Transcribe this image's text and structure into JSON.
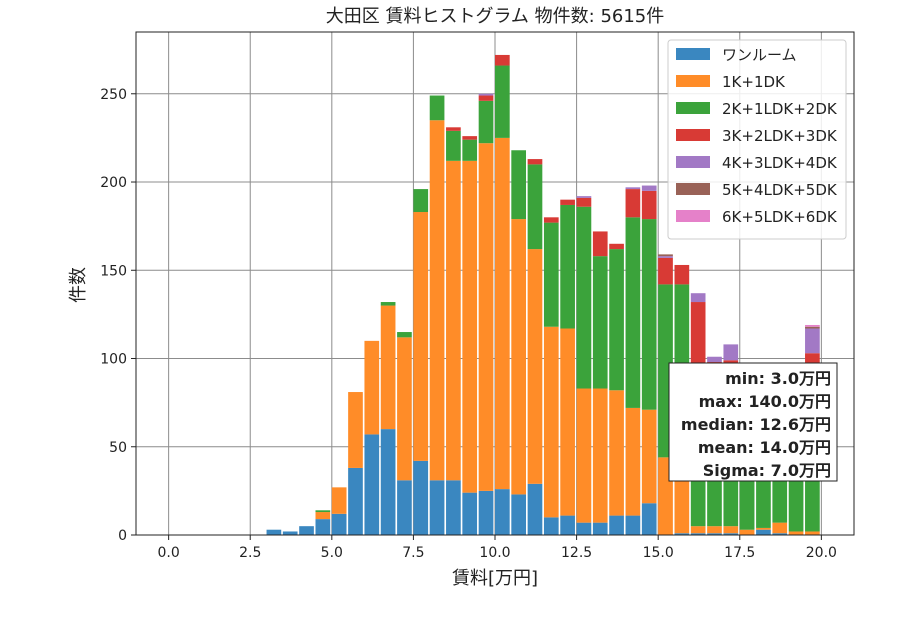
{
  "chart_data": {
    "type": "bar",
    "stacked": true,
    "title": "大田区 賃料ヒストグラム  物件数: 5615件",
    "xlabel": "賃料[万円]",
    "ylabel": "件数",
    "xlim": [
      -1.0,
      21.0
    ],
    "ylim": [
      0,
      285
    ],
    "grid": true,
    "legend_position": "top-right",
    "xticks": [
      0.0,
      2.5,
      5.0,
      7.5,
      10.0,
      12.5,
      15.0,
      17.5,
      20.0
    ],
    "xtick_labels": [
      "0.0",
      "2.5",
      "5.0",
      "7.5",
      "10.0",
      "12.5",
      "15.0",
      "17.5",
      "20.0"
    ],
    "yticks": [
      0,
      50,
      100,
      150,
      200,
      250
    ],
    "ytick_labels": [
      "0",
      "50",
      "100",
      "150",
      "200",
      "250"
    ],
    "bin_width": 0.5,
    "bin_starts": [
      3.0,
      3.5,
      4.0,
      4.5,
      5.0,
      5.5,
      6.0,
      6.5,
      7.0,
      7.5,
      8.0,
      8.5,
      9.0,
      9.5,
      10.0,
      10.5,
      11.0,
      11.5,
      12.0,
      12.5,
      13.0,
      13.5,
      14.0,
      14.5,
      15.0,
      15.5,
      16.0,
      16.5,
      17.0,
      17.5,
      18.0,
      18.5,
      19.0,
      19.5
    ],
    "series": [
      {
        "name": "ワンルーム",
        "color": "#3a87c0",
        "values": [
          3,
          2,
          5,
          9,
          12,
          38,
          57,
          60,
          31,
          42,
          31,
          31,
          24,
          25,
          26,
          23,
          29,
          10,
          11,
          7,
          7,
          11,
          11,
          18,
          0,
          1,
          1,
          1,
          1,
          0,
          3,
          1,
          0,
          0
        ]
      },
      {
        "name": "1K+1DK",
        "color": "#ff8c28",
        "values": [
          0,
          0,
          0,
          4,
          15,
          43,
          53,
          70,
          81,
          141,
          204,
          181,
          188,
          197,
          199,
          156,
          133,
          108,
          106,
          76,
          76,
          71,
          61,
          53,
          44,
          36,
          4,
          4,
          4,
          3,
          1,
          6,
          2,
          2
        ]
      },
      {
        "name": "2K+1LDK+2DK",
        "color": "#3ba33b",
        "values": [
          0,
          0,
          0,
          1,
          0,
          0,
          0,
          2,
          3,
          13,
          14,
          17,
          12,
          24,
          41,
          39,
          48,
          59,
          70,
          103,
          75,
          80,
          108,
          108,
          98,
          105,
          87,
          87,
          87,
          80,
          77,
          78,
          75,
          95
        ]
      },
      {
        "name": "3K+2LDK+3DK",
        "color": "#d83a35",
        "values": [
          0,
          0,
          0,
          0,
          0,
          0,
          0,
          0,
          0,
          0,
          0,
          2,
          2,
          3,
          6,
          0,
          3,
          3,
          3,
          5,
          14,
          3,
          16,
          16,
          15,
          11,
          40,
          6,
          7,
          0,
          0,
          0,
          0,
          6
        ]
      },
      {
        "name": "4K+3LDK+4DK",
        "color": "#a279c5",
        "values": [
          0,
          0,
          0,
          0,
          0,
          0,
          0,
          0,
          0,
          0,
          0,
          0,
          0,
          1,
          0,
          0,
          0,
          0,
          0,
          1,
          0,
          0,
          1,
          3,
          1,
          0,
          5,
          3,
          9,
          0,
          0,
          0,
          0,
          14
        ]
      },
      {
        "name": "5K+4LDK+5DK",
        "color": "#996257",
        "values": [
          0,
          0,
          0,
          0,
          0,
          0,
          0,
          0,
          0,
          0,
          0,
          0,
          0,
          0,
          0,
          0,
          0,
          0,
          0,
          0,
          0,
          0,
          0,
          0,
          1,
          0,
          0,
          0,
          0,
          0,
          0,
          0,
          0,
          1
        ]
      },
      {
        "name": "6K+5LDK+6DK",
        "color": "#e581c9",
        "values": [
          0,
          0,
          0,
          0,
          0,
          0,
          0,
          0,
          0,
          0,
          0,
          0,
          0,
          0,
          0,
          0,
          0,
          0,
          0,
          0,
          0,
          0,
          0,
          0,
          0,
          0,
          0,
          0,
          0,
          0,
          0,
          0,
          0,
          1
        ]
      }
    ],
    "annotations": {
      "stats": [
        "min: 3.0万円",
        "max: 140.0万円",
        "median: 12.6万円",
        "mean: 14.0万円",
        "Sigma: 7.0万円"
      ]
    }
  }
}
